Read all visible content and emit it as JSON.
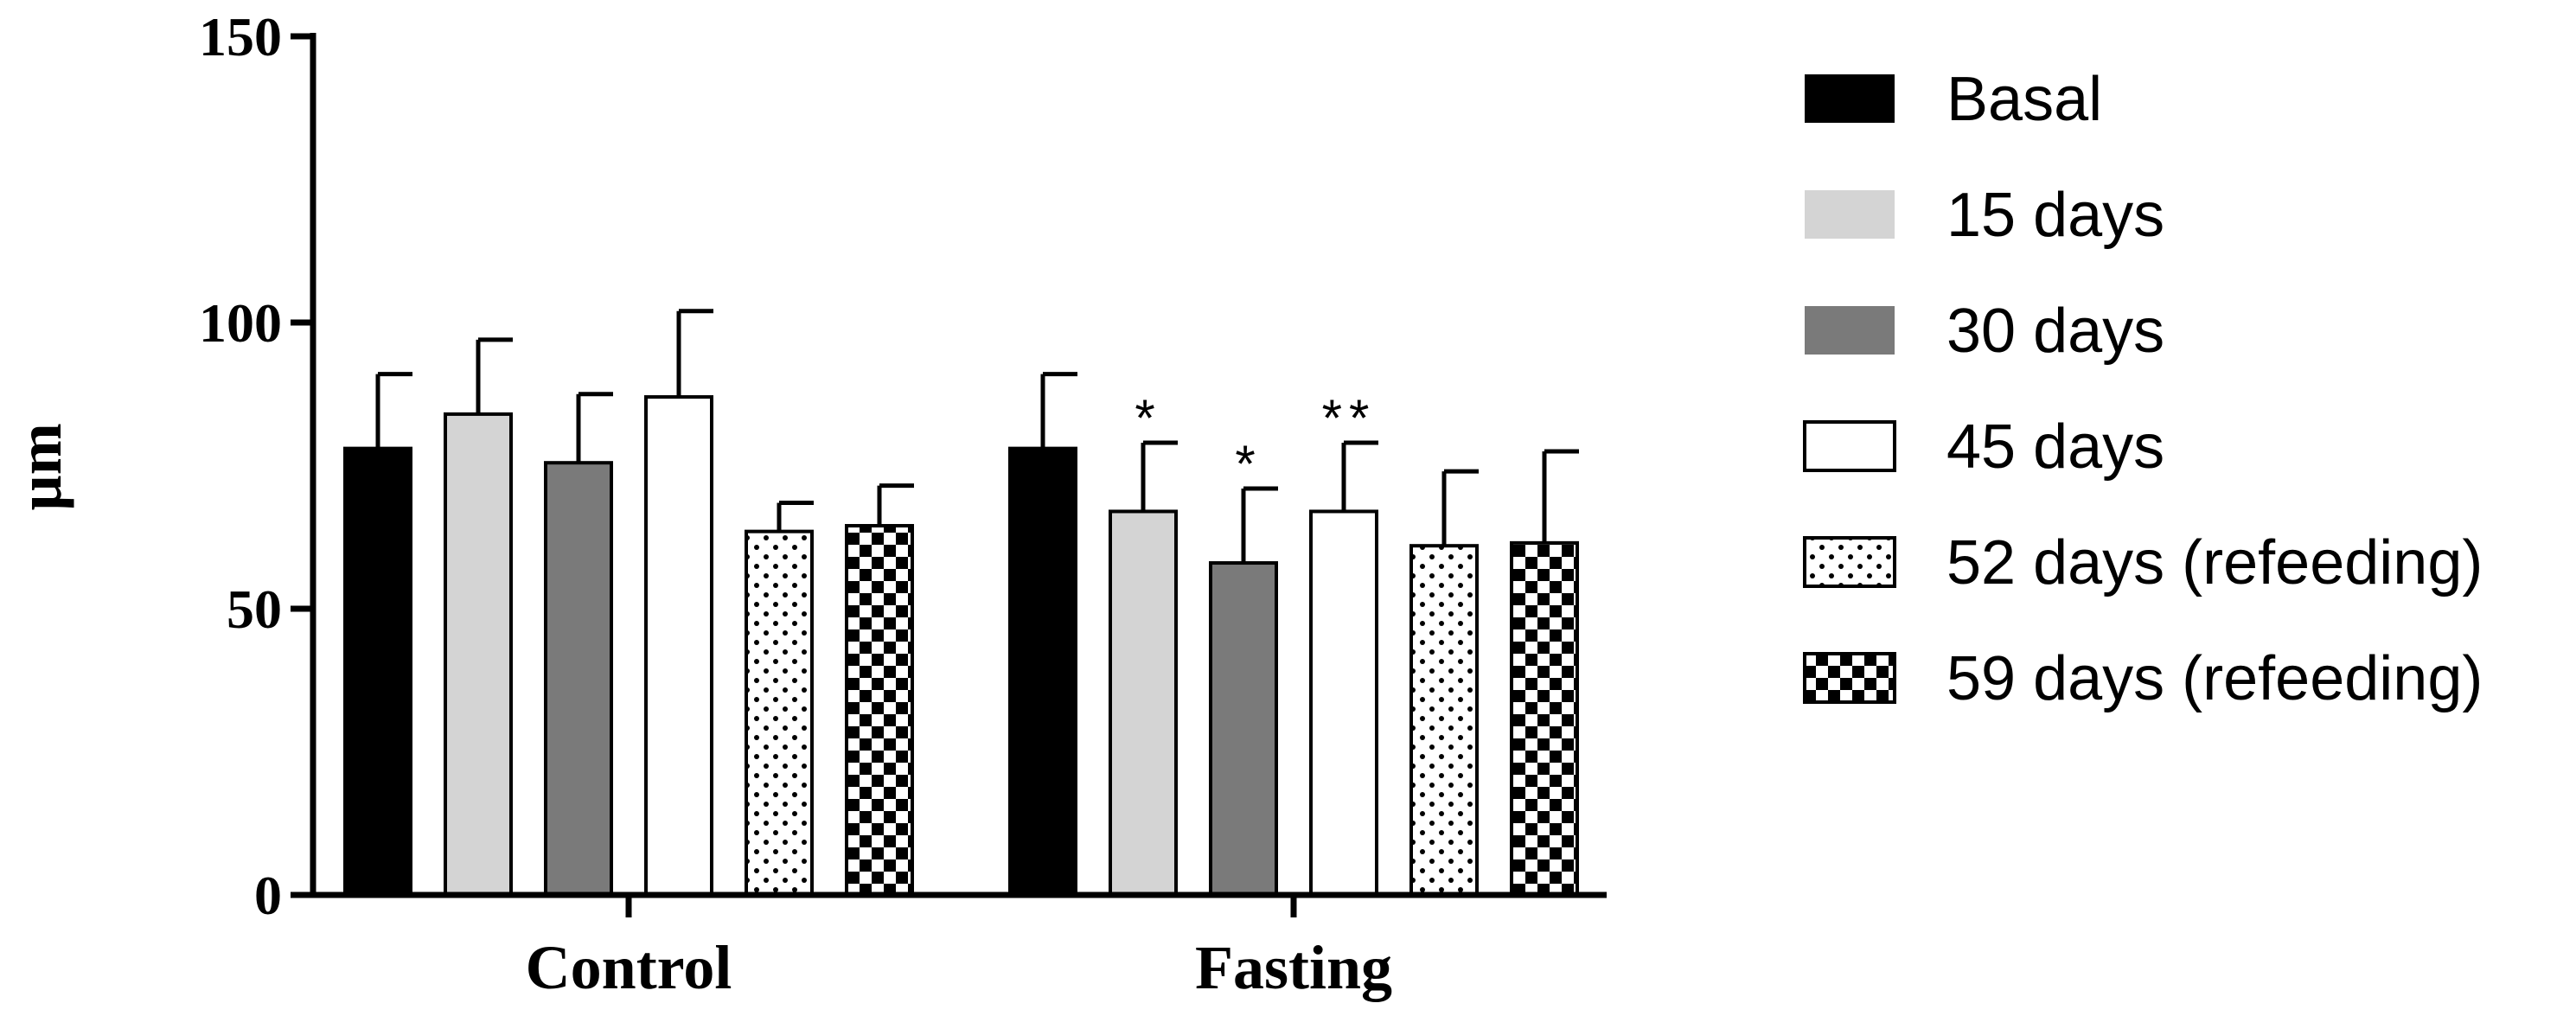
{
  "chart_data": {
    "type": "bar",
    "title": "",
    "xlabel": "",
    "ylabel": "µm",
    "ylim": [
      0,
      150
    ],
    "yticks": [
      "0",
      "50",
      "100",
      "150"
    ],
    "categories": [
      "Control",
      "Fasting"
    ],
    "series": [
      {
        "name": "Basal",
        "values": [
          78,
          78
        ],
        "errors": [
          13,
          13
        ],
        "significance": [
          "",
          ""
        ],
        "fill": "#000000",
        "pattern": "solid"
      },
      {
        "name": "15 days",
        "values": [
          84,
          67
        ],
        "errors": [
          13,
          12
        ],
        "significance": [
          "",
          "*"
        ],
        "fill": "#d4d4d4",
        "pattern": "solid"
      },
      {
        "name": "30 days",
        "values": [
          75.5,
          58
        ],
        "errors": [
          12,
          13
        ],
        "significance": [
          "",
          "*"
        ],
        "fill": "#7a7a7a",
        "pattern": "solid"
      },
      {
        "name": "45 days",
        "values": [
          87,
          67
        ],
        "errors": [
          15,
          12
        ],
        "significance": [
          "",
          "**"
        ],
        "fill": "#ffffff",
        "pattern": "solid"
      },
      {
        "name": "52 days (refeeding)",
        "values": [
          63.5,
          61
        ],
        "errors": [
          5,
          13
        ],
        "significance": [
          "",
          ""
        ],
        "fill": "#ffffff",
        "pattern": "dots"
      },
      {
        "name": "59 days (refeeding)",
        "values": [
          64.5,
          61.5
        ],
        "errors": [
          7,
          16
        ],
        "significance": [
          "",
          ""
        ],
        "fill": "#ffffff",
        "pattern": "checker"
      }
    ],
    "grid": false,
    "legend_position": "right"
  }
}
